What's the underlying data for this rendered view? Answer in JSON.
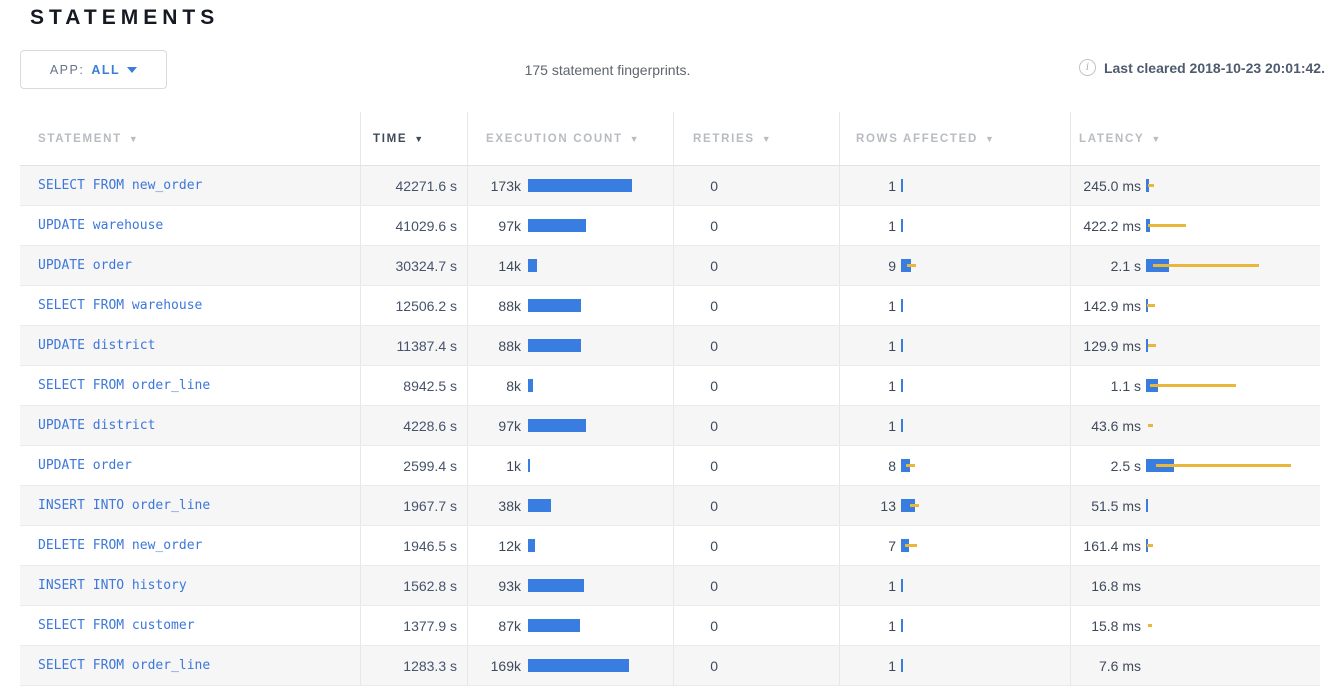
{
  "page_title": "STATEMENTS",
  "toolbar": {
    "app_filter_label": "APP:",
    "app_filter_value": "ALL",
    "summary": "175 statement fingerprints.",
    "info_icon_glyph": "i",
    "last_cleared": "Last cleared 2018-10-23 20:01:42."
  },
  "colors": {
    "bar_blue": "#3a7de1",
    "bar_yellow": "#eab73d",
    "statement_link": "#3c77d9"
  },
  "table": {
    "columns": [
      {
        "label": "STATEMENT",
        "sort_arrow": "▼",
        "active": false
      },
      {
        "label": "TIME",
        "sort_arrow": "▼",
        "active": true
      },
      {
        "label": "EXECUTION COUNT",
        "sort_arrow": "▼",
        "active": false
      },
      {
        "label": "RETRIES",
        "sort_arrow": "▼",
        "active": false
      },
      {
        "label": "ROWS AFFECTED",
        "sort_arrow": "▼",
        "active": false
      },
      {
        "label": "LATENCY",
        "sort_arrow": "▼",
        "active": false
      }
    ],
    "rows": [
      {
        "statement": "SELECT FROM new_order",
        "time": "42271.6 s",
        "exec_count": "173k",
        "exec_bar": 104,
        "retries": "0",
        "rows_affected": "1",
        "rows_bar": 1.5,
        "rows_whisker": null,
        "latency": "245.0 ms",
        "lat_bar": 3,
        "lat_whisker": [
          2,
          6
        ]
      },
      {
        "statement": "UPDATE warehouse",
        "time": "41029.6 s",
        "exec_count": "97k",
        "exec_bar": 58,
        "retries": "0",
        "rows_affected": "1",
        "rows_bar": 1.5,
        "rows_whisker": null,
        "latency": "422.2 ms",
        "lat_bar": 4,
        "lat_whisker": [
          2,
          38
        ]
      },
      {
        "statement": "UPDATE order",
        "time": "30324.7 s",
        "exec_count": "14k",
        "exec_bar": 9,
        "retries": "0",
        "rows_affected": "9",
        "rows_bar": 10,
        "rows_whisker": [
          6,
          9
        ],
        "latency": "2.1 s",
        "lat_bar": 23,
        "lat_whisker": [
          7,
          106
        ]
      },
      {
        "statement": "SELECT FROM warehouse",
        "time": "12506.2 s",
        "exec_count": "88k",
        "exec_bar": 53,
        "retries": "0",
        "rows_affected": "1",
        "rows_bar": 1.5,
        "rows_whisker": null,
        "latency": "142.9 ms",
        "lat_bar": 2,
        "lat_whisker": [
          1,
          8
        ]
      },
      {
        "statement": "UPDATE district",
        "time": "11387.4 s",
        "exec_count": "88k",
        "exec_bar": 53,
        "retries": "0",
        "rows_affected": "1",
        "rows_bar": 1.5,
        "rows_whisker": null,
        "latency": "129.9 ms",
        "lat_bar": 2,
        "lat_whisker": [
          2,
          8
        ]
      },
      {
        "statement": "SELECT FROM order_line",
        "time": "8942.5 s",
        "exec_count": "8k",
        "exec_bar": 5,
        "retries": "0",
        "rows_affected": "1",
        "rows_bar": 1.5,
        "rows_whisker": null,
        "latency": "1.1 s",
        "lat_bar": 12,
        "lat_whisker": [
          4,
          86
        ]
      },
      {
        "statement": "UPDATE district",
        "time": "4228.6 s",
        "exec_count": "97k",
        "exec_bar": 58,
        "retries": "0",
        "rows_affected": "1",
        "rows_bar": 1.5,
        "rows_whisker": null,
        "latency": "43.6 ms",
        "lat_bar": 0,
        "lat_whisker": [
          2,
          5
        ]
      },
      {
        "statement": "UPDATE order",
        "time": "2599.4 s",
        "exec_count": "1k",
        "exec_bar": 1.5,
        "retries": "0",
        "rows_affected": "8",
        "rows_bar": 9,
        "rows_whisker": [
          5,
          9
        ],
        "latency": "2.5 s",
        "lat_bar": 28,
        "lat_whisker": [
          10,
          135
        ]
      },
      {
        "statement": "INSERT INTO order_line",
        "time": "1967.7 s",
        "exec_count": "38k",
        "exec_bar": 23,
        "retries": "0",
        "rows_affected": "13",
        "rows_bar": 14,
        "rows_whisker": [
          9,
          9
        ],
        "latency": "51.5 ms",
        "lat_bar": 1.5,
        "lat_whisker": null
      },
      {
        "statement": "DELETE FROM new_order",
        "time": "1946.5 s",
        "exec_count": "12k",
        "exec_bar": 7,
        "retries": "0",
        "rows_affected": "7",
        "rows_bar": 8,
        "rows_whisker": [
          4,
          12
        ],
        "latency": "161.4 ms",
        "lat_bar": 2,
        "lat_whisker": [
          1,
          6
        ]
      },
      {
        "statement": "INSERT INTO history",
        "time": "1562.8 s",
        "exec_count": "93k",
        "exec_bar": 56,
        "retries": "0",
        "rows_affected": "1",
        "rows_bar": 1.5,
        "rows_whisker": null,
        "latency": "16.8 ms",
        "lat_bar": 0,
        "lat_whisker": null
      },
      {
        "statement": "SELECT FROM customer",
        "time": "1377.9 s",
        "exec_count": "87k",
        "exec_bar": 52,
        "retries": "0",
        "rows_affected": "1",
        "rows_bar": 1.5,
        "rows_whisker": null,
        "latency": "15.8 ms",
        "lat_bar": 0,
        "lat_whisker": [
          2,
          4
        ]
      },
      {
        "statement": "SELECT FROM order_line",
        "time": "1283.3 s",
        "exec_count": "169k",
        "exec_bar": 101,
        "retries": "0",
        "rows_affected": "1",
        "rows_bar": 1.5,
        "rows_whisker": null,
        "latency": "7.6 ms",
        "lat_bar": 0,
        "lat_whisker": null
      }
    ]
  }
}
